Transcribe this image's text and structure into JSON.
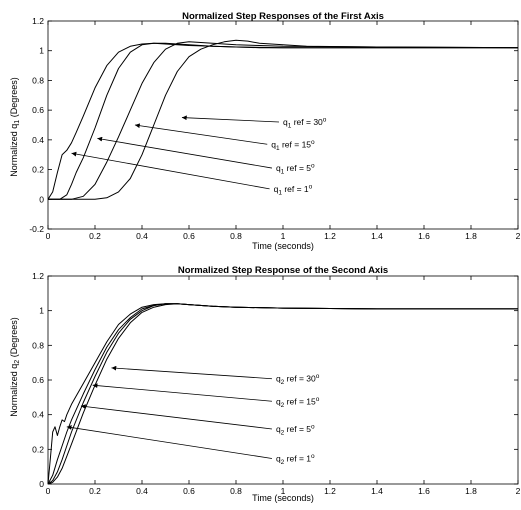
{
  "chart_data": [
    {
      "type": "line",
      "title": "Normalized Step Responses of the First Axis",
      "xlabel": "Time (seconds)",
      "ylabel": {
        "pre": "Normalized q",
        "sub": "1",
        "post": " (Degrees)"
      },
      "xlim": [
        0,
        2
      ],
      "ylim": [
        -0.2,
        1.2
      ],
      "xticks": [
        "0",
        "0.2",
        "0.4",
        "0.6",
        "0.8",
        "1",
        "1.2",
        "1.4",
        "1.6",
        "1.8",
        "2"
      ],
      "yticks": [
        "-0.2",
        "0",
        "0.2",
        "0.4",
        "0.6",
        "0.8",
        "1",
        "1.2"
      ],
      "grid": false,
      "line_color": "#000000",
      "series": [
        {
          "x": [
            0,
            0.02,
            0.04,
            0.06,
            0.08,
            0.1,
            0.12,
            0.15,
            0.2,
            0.25,
            0.3,
            0.35,
            0.4,
            0.45,
            0.5,
            0.55,
            0.6,
            0.7,
            0.8,
            1.0,
            1.4,
            2.0
          ],
          "y": [
            0,
            0.05,
            0.18,
            0.3,
            0.33,
            0.38,
            0.45,
            0.56,
            0.75,
            0.9,
            0.99,
            1.03,
            1.045,
            1.05,
            1.045,
            1.04,
            1.035,
            1.03,
            1.025,
            1.02,
            1.02,
            1.02
          ]
        },
        {
          "x": [
            0,
            0.05,
            0.08,
            0.1,
            0.12,
            0.15,
            0.2,
            0.25,
            0.3,
            0.35,
            0.4,
            0.45,
            0.5,
            0.55,
            0.6,
            0.7,
            0.8,
            0.9,
            1.0,
            1.4,
            2.0
          ],
          "y": [
            0,
            0,
            0.03,
            0.1,
            0.18,
            0.28,
            0.48,
            0.7,
            0.88,
            0.99,
            1.04,
            1.05,
            1.05,
            1.045,
            1.04,
            1.03,
            1.025,
            1.02,
            1.02,
            1.02,
            1.02
          ]
        },
        {
          "x": [
            0,
            0.1,
            0.15,
            0.2,
            0.25,
            0.3,
            0.35,
            0.4,
            0.45,
            0.5,
            0.55,
            0.6,
            0.65,
            0.7,
            0.8,
            0.9,
            1.0,
            1.4,
            2.0
          ],
          "y": [
            0,
            0,
            0.02,
            0.1,
            0.25,
            0.42,
            0.6,
            0.78,
            0.92,
            1.01,
            1.05,
            1.06,
            1.055,
            1.05,
            1.04,
            1.035,
            1.03,
            1.025,
            1.02
          ]
        },
        {
          "x": [
            0,
            0.2,
            0.25,
            0.3,
            0.35,
            0.4,
            0.45,
            0.5,
            0.55,
            0.6,
            0.65,
            0.7,
            0.75,
            0.8,
            0.85,
            0.9,
            1.0,
            1.1,
            1.4,
            2.0
          ],
          "y": [
            0,
            0,
            0.01,
            0.05,
            0.14,
            0.3,
            0.5,
            0.7,
            0.86,
            0.96,
            1.01,
            1.04,
            1.06,
            1.07,
            1.065,
            1.05,
            1.04,
            1.03,
            1.025,
            1.02
          ]
        }
      ],
      "annotations": [
        {
          "pre": "q",
          "sub": "1",
          "text": " ref = 30",
          "sup": "o",
          "x": 1.0,
          "y": 0.5,
          "ax": 0.57,
          "ay": 0.55
        },
        {
          "pre": "q",
          "sub": "1",
          "text": " ref = 15",
          "sup": "o",
          "x": 0.95,
          "y": 0.35,
          "ax": 0.37,
          "ay": 0.5
        },
        {
          "pre": "q",
          "sub": "1",
          "text": " ref = 5",
          "sup": "o",
          "x": 0.97,
          "y": 0.19,
          "ax": 0.21,
          "ay": 0.41
        },
        {
          "pre": "q",
          "sub": "1",
          "text": " ref = 1",
          "sup": "o",
          "x": 0.96,
          "y": 0.05,
          "ax": 0.1,
          "ay": 0.31
        }
      ]
    },
    {
      "type": "line",
      "title": "Normalized Step Response of the Second Axis",
      "xlabel": "Time (seconds)",
      "ylabel": {
        "pre": "Normalized q",
        "sub": "2",
        "post": " (Degrees)"
      },
      "xlim": [
        0,
        2
      ],
      "ylim": [
        0,
        1.2
      ],
      "xticks": [
        "0",
        "0.2",
        "0.4",
        "0.6",
        "0.8",
        "1",
        "1.2",
        "1.4",
        "1.6",
        "1.8",
        "2"
      ],
      "yticks": [
        "0",
        "0.2",
        "0.4",
        "0.6",
        "0.8",
        "1",
        "1.2"
      ],
      "grid": false,
      "line_color": "#000000",
      "series": [
        {
          "x": [
            0,
            0.01,
            0.02,
            0.03,
            0.04,
            0.05,
            0.06,
            0.07,
            0.08,
            0.1,
            0.15,
            0.2,
            0.25,
            0.3,
            0.35,
            0.4,
            0.45,
            0.5,
            0.55,
            0.6,
            0.7,
            0.8,
            1.0,
            1.4,
            2.0
          ],
          "y": [
            0,
            0.15,
            0.3,
            0.33,
            0.28,
            0.33,
            0.37,
            0.36,
            0.4,
            0.46,
            0.58,
            0.7,
            0.82,
            0.92,
            0.98,
            1.02,
            1.035,
            1.04,
            1.04,
            1.035,
            1.025,
            1.02,
            1.015,
            1.01,
            1.01
          ]
        },
        {
          "x": [
            0,
            0.02,
            0.04,
            0.06,
            0.08,
            0.1,
            0.15,
            0.2,
            0.25,
            0.3,
            0.35,
            0.4,
            0.45,
            0.5,
            0.55,
            0.6,
            0.7,
            0.8,
            1.0,
            1.4,
            2.0
          ],
          "y": [
            0,
            0.05,
            0.14,
            0.22,
            0.3,
            0.37,
            0.52,
            0.66,
            0.79,
            0.89,
            0.96,
            1.01,
            1.03,
            1.04,
            1.04,
            1.035,
            1.025,
            1.02,
            1.015,
            1.01,
            1.01
          ]
        },
        {
          "x": [
            0,
            0.02,
            0.04,
            0.06,
            0.08,
            0.1,
            0.15,
            0.2,
            0.25,
            0.3,
            0.35,
            0.4,
            0.45,
            0.5,
            0.55,
            0.6,
            0.7,
            0.8,
            1.0,
            1.4,
            2.0
          ],
          "y": [
            0,
            0.02,
            0.07,
            0.14,
            0.22,
            0.3,
            0.47,
            0.62,
            0.76,
            0.87,
            0.95,
            1.0,
            1.03,
            1.04,
            1.04,
            1.035,
            1.025,
            1.02,
            1.015,
            1.01,
            1.01
          ]
        },
        {
          "x": [
            0,
            0.02,
            0.04,
            0.06,
            0.08,
            0.1,
            0.15,
            0.2,
            0.25,
            0.3,
            0.35,
            0.4,
            0.45,
            0.5,
            0.55,
            0.6,
            0.7,
            0.8,
            1.0,
            1.4,
            2.0
          ],
          "y": [
            0,
            0.01,
            0.04,
            0.09,
            0.16,
            0.23,
            0.41,
            0.57,
            0.72,
            0.84,
            0.93,
            0.99,
            1.02,
            1.035,
            1.04,
            1.035,
            1.025,
            1.02,
            1.015,
            1.01,
            1.01
          ]
        }
      ],
      "annotations": [
        {
          "pre": "q",
          "sub": "2",
          "text": " ref = 30",
          "sup": "o",
          "x": 0.97,
          "y": 0.59,
          "ax": 0.27,
          "ay": 0.67
        },
        {
          "pre": "q",
          "sub": "2",
          "text": " ref = 15",
          "sup": "o",
          "x": 0.97,
          "y": 0.46,
          "ax": 0.19,
          "ay": 0.57
        },
        {
          "pre": "q",
          "sub": "2",
          "text": " ref = 5",
          "sup": "o",
          "x": 0.97,
          "y": 0.3,
          "ax": 0.14,
          "ay": 0.45
        },
        {
          "pre": "q",
          "sub": "2",
          "text": " ref = 1",
          "sup": "o",
          "x": 0.97,
          "y": 0.13,
          "ax": 0.08,
          "ay": 0.33
        }
      ]
    }
  ]
}
